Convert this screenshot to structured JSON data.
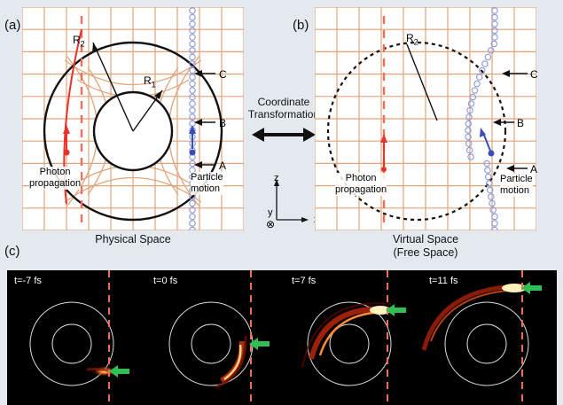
{
  "panels": {
    "a": {
      "label": "(a)",
      "caption": "Physical Space",
      "r2_label": "R",
      "r2_sub": "2",
      "r1_label": "R",
      "r1_sub": "1",
      "point_labels": [
        "C",
        "B",
        "A"
      ],
      "photon_label_line1": "Photon",
      "photon_label_line2": "propagation",
      "particle_label_line1": "Particle",
      "particle_label_line2": "motion"
    },
    "b": {
      "label": "(b)",
      "caption_line1": "Virtual Space",
      "caption_line2": "(Free Space)",
      "r2_label": "R",
      "r2_sub": "2",
      "point_labels": [
        "C",
        "B",
        "A"
      ],
      "photon_label_line1": "Photon",
      "photon_label_line2": "propagation",
      "particle_label_line1": "Particle",
      "particle_label_line2": "motion"
    },
    "c": {
      "label": "(c)",
      "tiles": [
        {
          "time_label": "t=-7 fs"
        },
        {
          "time_label": "t=0 fs"
        },
        {
          "time_label": "t=7 fs"
        },
        {
          "time_label": "t=11 fs"
        }
      ]
    }
  },
  "transform_label_line1": "Coordinate",
  "transform_label_line2": "Transformation",
  "axes": {
    "z": "z",
    "y": "y",
    "x": "x",
    "cross_symbol": "⊗"
  },
  "colors": {
    "grid": "#e0a47a",
    "photon": "#e8332b",
    "dashed_line": "#ee6f5a",
    "particle": "#3b4db6",
    "particle_dot": "#8a98d8",
    "arrow_green": "#2fbf52",
    "background": "#e4e9ef"
  }
}
